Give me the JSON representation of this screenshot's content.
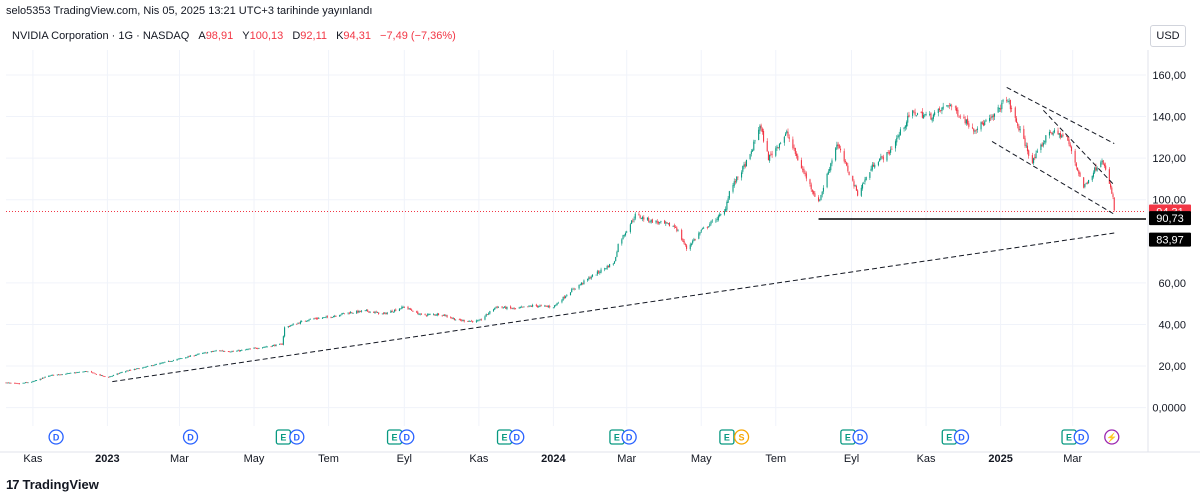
{
  "header": {
    "published": "selo5353 TradingView.com, Nis 05, 2025 13:21 UTC+3 tarihinde yayınlandı",
    "symbol": "NVIDIA Corporation · 1G · NASDAQ",
    "o_label": "A",
    "o_value": "98,91",
    "h_label": "Y",
    "h_value": "100,13",
    "l_label": "D",
    "l_value": "92,11",
    "c_label": "K",
    "c_value": "94,31",
    "change": "−7,49 (−7,36%)"
  },
  "currency_button": "USD",
  "footer": {
    "logo_mark": "17",
    "brand": "TradingView"
  },
  "chart_data": {
    "type": "candlestick",
    "y_ticks": [
      "160,00",
      "140,00",
      "120,00",
      "100,00",
      "60,00",
      "40,00",
      "20,00",
      "0,0000"
    ],
    "y_tick_values": [
      160,
      140,
      120,
      100,
      60,
      40,
      20,
      0
    ],
    "ylim": [
      -5,
      172
    ],
    "x_ticks": [
      "Kas",
      "2023",
      "Mar",
      "May",
      "Tem",
      "Eyl",
      "Kas",
      "2024",
      "Mar",
      "May",
      "Tem",
      "Eyl",
      "Kas",
      "2025",
      "Mar"
    ],
    "x_tick_dates": [
      "2022-11-01",
      "2023-01-01",
      "2023-03-01",
      "2023-05-01",
      "2023-07-01",
      "2023-09-01",
      "2023-11-01",
      "2024-01-01",
      "2024-03-01",
      "2024-05-01",
      "2024-07-01",
      "2024-09-01",
      "2024-11-01",
      "2025-01-01",
      "2025-03-01"
    ],
    "x_range": [
      "2022-10-10",
      "2025-04-30"
    ],
    "close_path": [
      [
        "2022-10-10",
        12.0
      ],
      [
        "2022-10-20",
        11.5
      ],
      [
        "2022-11-01",
        12.5
      ],
      [
        "2022-11-15",
        15.5
      ],
      [
        "2022-12-01",
        16.5
      ],
      [
        "2022-12-15",
        17.5
      ],
      [
        "2023-01-01",
        14.5
      ],
      [
        "2023-01-15",
        17.5
      ],
      [
        "2023-02-01",
        19.5
      ],
      [
        "2023-02-15",
        21.5
      ],
      [
        "2023-03-01",
        23.5
      ],
      [
        "2023-03-15",
        25.5
      ],
      [
        "2023-04-01",
        27.5
      ],
      [
        "2023-04-15",
        27.0
      ],
      [
        "2023-05-01",
        28.5
      ],
      [
        "2023-05-24",
        30.5
      ],
      [
        "2023-05-26",
        38.5
      ],
      [
        "2023-06-15",
        42.5
      ],
      [
        "2023-07-01",
        43.5
      ],
      [
        "2023-07-15",
        45.5
      ],
      [
        "2023-08-01",
        46.5
      ],
      [
        "2023-08-15",
        45.0
      ],
      [
        "2023-09-01",
        48.5
      ],
      [
        "2023-09-15",
        44.5
      ],
      [
        "2023-10-01",
        45.0
      ],
      [
        "2023-10-15",
        42.0
      ],
      [
        "2023-11-01",
        41.5
      ],
      [
        "2023-11-15",
        48.5
      ],
      [
        "2023-12-01",
        47.5
      ],
      [
        "2023-12-15",
        49.0
      ],
      [
        "2024-01-01",
        48.5
      ],
      [
        "2024-01-15",
        56.0
      ],
      [
        "2024-02-01",
        63.0
      ],
      [
        "2024-02-20",
        70.0
      ],
      [
        "2024-02-23",
        78.5
      ],
      [
        "2024-03-08",
        92.5
      ],
      [
        "2024-03-20",
        90.0
      ],
      [
        "2024-04-10",
        87.0
      ],
      [
        "2024-04-19",
        76.5
      ],
      [
        "2024-05-01",
        85.0
      ],
      [
        "2024-05-20",
        94.0
      ],
      [
        "2024-05-24",
        104.0
      ],
      [
        "2024-06-10",
        121.0
      ],
      [
        "2024-06-18",
        136.0
      ],
      [
        "2024-06-25",
        120.0
      ],
      [
        "2024-07-10",
        132.0
      ],
      [
        "2024-07-20",
        118.0
      ],
      [
        "2024-08-05",
        98.5
      ],
      [
        "2024-08-20",
        127.0
      ],
      [
        "2024-09-06",
        103.0
      ],
      [
        "2024-09-20",
        118.0
      ],
      [
        "2024-10-01",
        122.0
      ],
      [
        "2024-10-20",
        142.0
      ],
      [
        "2024-11-05",
        140.0
      ],
      [
        "2024-11-20",
        146.0
      ],
      [
        "2024-12-10",
        134.0
      ],
      [
        "2024-12-25",
        139.0
      ],
      [
        "2025-01-06",
        149.0
      ],
      [
        "2025-01-27",
        118.0
      ],
      [
        "2025-02-10",
        133.0
      ],
      [
        "2025-02-24",
        130.0
      ],
      [
        "2025-03-10",
        106.0
      ],
      [
        "2025-03-25",
        120.0
      ],
      [
        "2025-04-03",
        101.0
      ],
      [
        "2025-04-04",
        94.31
      ]
    ],
    "last_price_label": "94,31",
    "last_price_color": "#f23645",
    "horizontal_level": {
      "value": 90.73,
      "label": "90,73",
      "from": "2024-08-05"
    },
    "trendline_support": {
      "from": [
        "2023-01-05",
        12.5
      ],
      "to": [
        "2025-04-04",
        83.97
      ],
      "label": "83,97"
    },
    "channel_upper": {
      "from": [
        "2025-01-06",
        154
      ],
      "to": [
        "2025-04-04",
        127
      ]
    },
    "channel_lower": {
      "from": [
        "2024-12-25",
        128
      ],
      "to": [
        "2025-04-04",
        93
      ]
    },
    "inner_upper": {
      "from": [
        "2025-02-05",
        143
      ],
      "to": [
        "2025-04-04",
        107
      ]
    },
    "events": [
      {
        "date": "2022-11-20",
        "label": "D",
        "kind": "dividend"
      },
      {
        "date": "2023-03-10",
        "label": "D",
        "kind": "dividend"
      },
      {
        "date": "2023-05-25",
        "label": "E",
        "kind": "earnings"
      },
      {
        "date": "2023-06-05",
        "label": "D",
        "kind": "dividend"
      },
      {
        "date": "2023-08-24",
        "label": "E",
        "kind": "earnings"
      },
      {
        "date": "2023-09-03",
        "label": "D",
        "kind": "dividend"
      },
      {
        "date": "2023-11-22",
        "label": "E",
        "kind": "earnings"
      },
      {
        "date": "2023-12-02",
        "label": "D",
        "kind": "dividend"
      },
      {
        "date": "2024-02-22",
        "label": "E",
        "kind": "earnings"
      },
      {
        "date": "2024-03-03",
        "label": "D",
        "kind": "dividend"
      },
      {
        "date": "2024-05-22",
        "label": "E",
        "kind": "earnings"
      },
      {
        "date": "2024-06-03",
        "label": "S",
        "kind": "split"
      },
      {
        "date": "2024-08-29",
        "label": "E",
        "kind": "earnings"
      },
      {
        "date": "2024-09-08",
        "label": "D",
        "kind": "dividend"
      },
      {
        "date": "2024-11-20",
        "label": "E",
        "kind": "earnings"
      },
      {
        "date": "2024-11-30",
        "label": "D",
        "kind": "dividend"
      },
      {
        "date": "2025-02-26",
        "label": "E",
        "kind": "earnings"
      },
      {
        "date": "2025-03-08",
        "label": "D",
        "kind": "dividend"
      },
      {
        "date": "2025-04-02",
        "label": "⚡",
        "kind": "flash"
      }
    ],
    "colors": {
      "up": "#089981",
      "down": "#f23645",
      "grid": "#f0f3fa",
      "text": "#131722",
      "dividend": "#2962ff",
      "earnings": "#089981",
      "split": "#f7a600",
      "flash": "#9c27b0"
    }
  }
}
